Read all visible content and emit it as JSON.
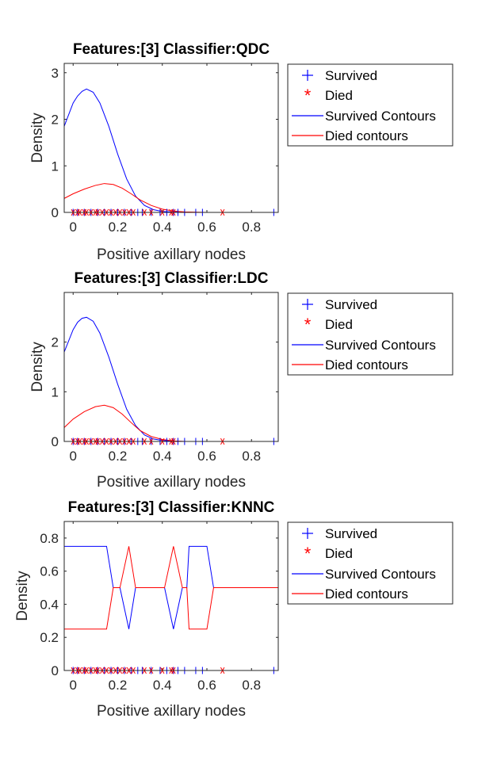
{
  "colors": {
    "survived": "#0000ff",
    "died": "#ff0000",
    "axis": "#262626"
  },
  "legend_labels": [
    "Survived",
    "Died",
    "Survived Contours",
    "Died contours"
  ],
  "chart_data": [
    {
      "type": "line",
      "title": "Features:[3]  Classifier:QDC",
      "xlabel": "Positive axillary nodes",
      "ylabel": "Density",
      "xlim": [
        -0.04,
        0.92
      ],
      "ylim": [
        0,
        3.2
      ],
      "xticks": [
        0,
        0.2,
        0.4,
        0.6,
        0.8
      ],
      "xtick_labels": [
        "0",
        "0.2",
        "0.4",
        "0.6",
        "0.8"
      ],
      "yticks": [
        0,
        1,
        2,
        3
      ],
      "ytick_labels": [
        "0",
        "1",
        "2",
        "3"
      ],
      "legend_position": "outside-right-top",
      "series": [
        {
          "name": "Survived Contours",
          "kind": "line",
          "color": "#0000ff",
          "x": [
            -0.04,
            0,
            0.02,
            0.04,
            0.06,
            0.09,
            0.12,
            0.16,
            0.2,
            0.24,
            0.28,
            0.32,
            0.36,
            0.4,
            0.44,
            0.5,
            0.6,
            0.92
          ],
          "y": [
            1.85,
            2.35,
            2.5,
            2.6,
            2.65,
            2.58,
            2.35,
            1.85,
            1.25,
            0.72,
            0.35,
            0.15,
            0.06,
            0.02,
            0.01,
            0,
            0,
            0
          ]
        },
        {
          "name": "Died contours",
          "kind": "line",
          "color": "#ff0000",
          "x": [
            -0.04,
            0,
            0.05,
            0.1,
            0.14,
            0.18,
            0.22,
            0.26,
            0.3,
            0.35,
            0.4,
            0.45,
            0.5,
            0.6,
            0.7,
            0.92
          ],
          "y": [
            0.3,
            0.4,
            0.5,
            0.58,
            0.62,
            0.6,
            0.52,
            0.4,
            0.27,
            0.15,
            0.07,
            0.03,
            0.01,
            0,
            0,
            0
          ]
        },
        {
          "name": "Survived",
          "kind": "marker",
          "marker": "+",
          "color": "#0000ff",
          "x": [
            0,
            0.02,
            0.05,
            0.08,
            0.11,
            0.14,
            0.17,
            0.2,
            0.23,
            0.26,
            0.29,
            0.31,
            0.35,
            0.39,
            0.42,
            0.45,
            0.47,
            0.5,
            0.55,
            0.58,
            0.9
          ],
          "y": [
            0,
            0,
            0,
            0,
            0,
            0,
            0,
            0,
            0,
            0,
            0,
            0,
            0,
            0,
            0,
            0,
            0,
            0,
            0,
            0,
            0
          ]
        },
        {
          "name": "Died",
          "kind": "marker",
          "marker": "*",
          "color": "#ff0000",
          "x": [
            0,
            0.02,
            0.03,
            0.05,
            0.06,
            0.08,
            0.1,
            0.11,
            0.13,
            0.15,
            0.17,
            0.19,
            0.21,
            0.23,
            0.25,
            0.27,
            0.32,
            0.35,
            0.4,
            0.44,
            0.45,
            0.67
          ],
          "y": [
            0,
            0,
            0,
            0,
            0,
            0,
            0,
            0,
            0,
            0,
            0,
            0,
            0,
            0,
            0,
            0,
            0,
            0,
            0,
            0,
            0,
            0
          ]
        }
      ]
    },
    {
      "type": "line",
      "title": "Features:[3]  Classifier:LDC",
      "xlabel": "Positive axillary nodes",
      "ylabel": "Density",
      "xlim": [
        -0.04,
        0.92
      ],
      "ylim": [
        0,
        3.0
      ],
      "xticks": [
        0,
        0.2,
        0.4,
        0.6,
        0.8
      ],
      "xtick_labels": [
        "0",
        "0.2",
        "0.4",
        "0.6",
        "0.8"
      ],
      "yticks": [
        0,
        1,
        2
      ],
      "ytick_labels": [
        "0",
        "1",
        "2"
      ],
      "legend_position": "outside-right-top",
      "series": [
        {
          "name": "Survived Contours",
          "kind": "line",
          "color": "#0000ff",
          "x": [
            -0.04,
            0,
            0.02,
            0.04,
            0.06,
            0.09,
            0.12,
            0.16,
            0.2,
            0.24,
            0.28,
            0.32,
            0.36,
            0.4,
            0.44,
            0.5,
            0.6,
            0.92
          ],
          "y": [
            1.8,
            2.25,
            2.4,
            2.48,
            2.5,
            2.42,
            2.18,
            1.7,
            1.15,
            0.65,
            0.32,
            0.13,
            0.05,
            0.02,
            0.01,
            0,
            0,
            0
          ]
        },
        {
          "name": "Died contours",
          "kind": "line",
          "color": "#ff0000",
          "x": [
            -0.04,
            0,
            0.05,
            0.1,
            0.14,
            0.18,
            0.22,
            0.26,
            0.3,
            0.35,
            0.4,
            0.45,
            0.5,
            0.6,
            0.7,
            0.92
          ],
          "y": [
            0.28,
            0.45,
            0.6,
            0.7,
            0.73,
            0.68,
            0.55,
            0.38,
            0.22,
            0.1,
            0.04,
            0.01,
            0,
            0,
            0,
            0
          ]
        },
        {
          "name": "Survived",
          "kind": "marker",
          "marker": "+",
          "color": "#0000ff",
          "x": [
            0,
            0.02,
            0.05,
            0.08,
            0.11,
            0.14,
            0.17,
            0.2,
            0.23,
            0.26,
            0.29,
            0.31,
            0.35,
            0.39,
            0.42,
            0.45,
            0.47,
            0.5,
            0.55,
            0.58,
            0.9
          ],
          "y": [
            0,
            0,
            0,
            0,
            0,
            0,
            0,
            0,
            0,
            0,
            0,
            0,
            0,
            0,
            0,
            0,
            0,
            0,
            0,
            0,
            0
          ]
        },
        {
          "name": "Died",
          "kind": "marker",
          "marker": "*",
          "color": "#ff0000",
          "x": [
            0,
            0.02,
            0.03,
            0.05,
            0.06,
            0.08,
            0.1,
            0.11,
            0.13,
            0.15,
            0.17,
            0.19,
            0.21,
            0.23,
            0.25,
            0.27,
            0.32,
            0.35,
            0.4,
            0.44,
            0.45,
            0.67
          ],
          "y": [
            0,
            0,
            0,
            0,
            0,
            0,
            0,
            0,
            0,
            0,
            0,
            0,
            0,
            0,
            0,
            0,
            0,
            0,
            0,
            0,
            0,
            0
          ]
        }
      ]
    },
    {
      "type": "line",
      "title": "Features:[3]  Classifier:KNNC",
      "xlabel": "Positive axillary nodes",
      "ylabel": "Density",
      "xlim": [
        -0.04,
        0.92
      ],
      "ylim": [
        0,
        0.9
      ],
      "xticks": [
        0,
        0.2,
        0.4,
        0.6,
        0.8
      ],
      "xtick_labels": [
        "0",
        "0.2",
        "0.4",
        "0.6",
        "0.8"
      ],
      "yticks": [
        0,
        0.2,
        0.4,
        0.6,
        0.8
      ],
      "ytick_labels": [
        "0",
        "0.2",
        "0.4",
        "0.6",
        "0.8"
      ],
      "legend_position": "outside-right-top",
      "series": [
        {
          "name": "Survived Contours",
          "kind": "line",
          "color": "#0000ff",
          "x": [
            -0.04,
            0.15,
            0.18,
            0.21,
            0.25,
            0.28,
            0.41,
            0.45,
            0.49,
            0.51,
            0.52,
            0.6,
            0.63,
            0.92
          ],
          "y": [
            0.75,
            0.75,
            0.5,
            0.5,
            0.25,
            0.5,
            0.5,
            0.25,
            0.5,
            0.5,
            0.75,
            0.75,
            0.5,
            0.5
          ]
        },
        {
          "name": "Died contours",
          "kind": "line",
          "color": "#ff0000",
          "x": [
            -0.04,
            0.15,
            0.18,
            0.21,
            0.25,
            0.28,
            0.41,
            0.45,
            0.49,
            0.51,
            0.52,
            0.6,
            0.63,
            0.92
          ],
          "y": [
            0.25,
            0.25,
            0.5,
            0.5,
            0.75,
            0.5,
            0.5,
            0.75,
            0.5,
            0.5,
            0.25,
            0.25,
            0.5,
            0.5
          ]
        },
        {
          "name": "Survived",
          "kind": "marker",
          "marker": "+",
          "color": "#0000ff",
          "x": [
            0,
            0.02,
            0.05,
            0.08,
            0.11,
            0.14,
            0.17,
            0.2,
            0.23,
            0.26,
            0.29,
            0.31,
            0.35,
            0.39,
            0.42,
            0.45,
            0.47,
            0.5,
            0.55,
            0.58,
            0.9
          ],
          "y": [
            0,
            0,
            0,
            0,
            0,
            0,
            0,
            0,
            0,
            0,
            0,
            0,
            0,
            0,
            0,
            0,
            0,
            0,
            0,
            0,
            0
          ]
        },
        {
          "name": "Died",
          "kind": "marker",
          "marker": "*",
          "color": "#ff0000",
          "x": [
            0,
            0.02,
            0.03,
            0.05,
            0.06,
            0.08,
            0.1,
            0.11,
            0.13,
            0.15,
            0.17,
            0.19,
            0.21,
            0.23,
            0.25,
            0.27,
            0.32,
            0.35,
            0.4,
            0.44,
            0.45,
            0.67
          ],
          "y": [
            0,
            0,
            0,
            0,
            0,
            0,
            0,
            0,
            0,
            0,
            0,
            0,
            0,
            0,
            0,
            0,
            0,
            0,
            0,
            0,
            0,
            0
          ]
        }
      ]
    }
  ]
}
